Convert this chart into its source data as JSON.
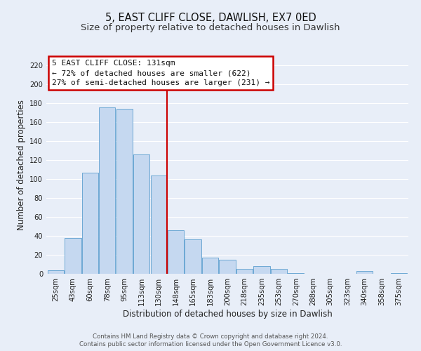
{
  "title": "5, EAST CLIFF CLOSE, DAWLISH, EX7 0ED",
  "subtitle": "Size of property relative to detached houses in Dawlish",
  "xlabel": "Distribution of detached houses by size in Dawlish",
  "ylabel": "Number of detached properties",
  "bin_labels": [
    "25sqm",
    "43sqm",
    "60sqm",
    "78sqm",
    "95sqm",
    "113sqm",
    "130sqm",
    "148sqm",
    "165sqm",
    "183sqm",
    "200sqm",
    "218sqm",
    "235sqm",
    "253sqm",
    "270sqm",
    "288sqm",
    "305sqm",
    "323sqm",
    "340sqm",
    "358sqm",
    "375sqm"
  ],
  "bar_heights": [
    4,
    38,
    107,
    176,
    174,
    126,
    104,
    46,
    36,
    17,
    15,
    5,
    8,
    5,
    1,
    0,
    0,
    0,
    3,
    0,
    1
  ],
  "bar_color": "#c5d8f0",
  "bar_edge_color": "#5c9ecf",
  "vline_color": "#cc0000",
  "annotation_title": "5 EAST CLIFF CLOSE: 131sqm",
  "annotation_line1": "← 72% of detached houses are smaller (622)",
  "annotation_line2": "27% of semi-detached houses are larger (231) →",
  "annotation_box_edge_color": "#cc0000",
  "annotation_box_face_color": "#ffffff",
  "ylim": [
    0,
    230
  ],
  "yticks": [
    0,
    20,
    40,
    60,
    80,
    100,
    120,
    140,
    160,
    180,
    200,
    220
  ],
  "footer_line1": "Contains HM Land Registry data © Crown copyright and database right 2024.",
  "footer_line2": "Contains public sector information licensed under the Open Government Licence v3.0.",
  "background_color": "#e8eef8",
  "grid_color": "#ffffff",
  "title_fontsize": 10.5,
  "subtitle_fontsize": 9.5,
  "axis_label_fontsize": 8.5,
  "tick_fontsize": 7.2,
  "footer_fontsize": 6.2,
  "annotation_fontsize": 8.0
}
